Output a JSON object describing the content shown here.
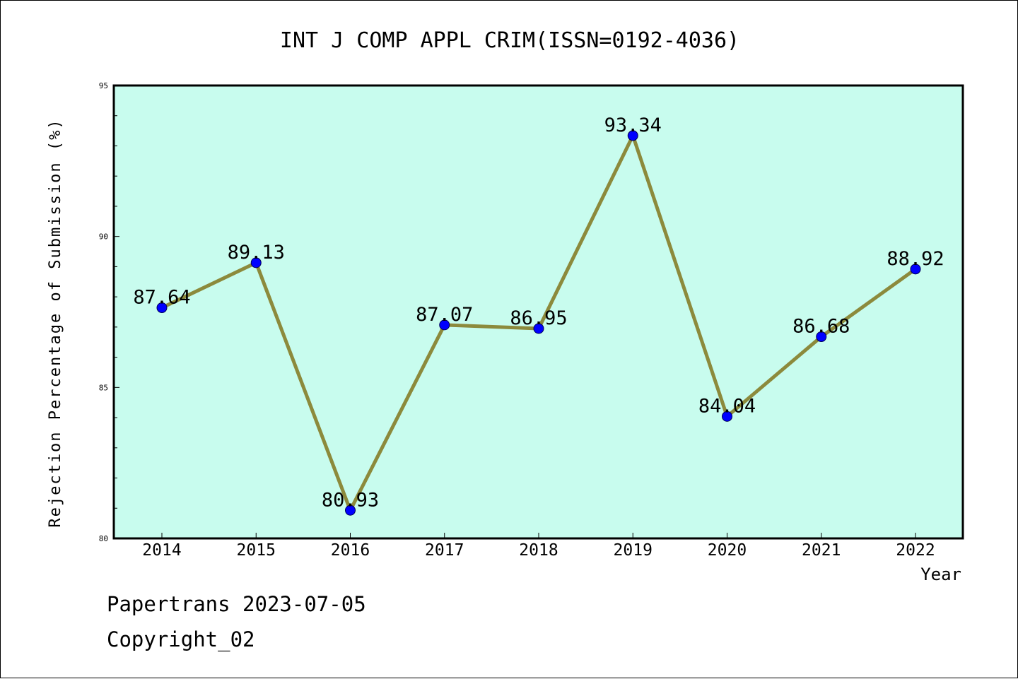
{
  "chart_data": {
    "type": "line",
    "title": "INT J COMP APPL CRIM(ISSN=0192-4036)",
    "xlabel": "Year",
    "ylabel": "Rejection Percentage of Submission (%)",
    "categories": [
      "2014",
      "2015",
      "2016",
      "2017",
      "2018",
      "2019",
      "2020",
      "2021",
      "2022"
    ],
    "values": [
      87.64,
      89.13,
      80.93,
      87.07,
      86.95,
      93.34,
      84.04,
      86.68,
      88.92
    ],
    "data_labels": [
      "87.64",
      "89.13",
      "80.93",
      "87.07",
      "86.95",
      "93.34",
      "84.04",
      "86.68",
      "88.92"
    ],
    "ylim": [
      80,
      95
    ],
    "yticks": [
      "80",
      "85",
      "90",
      "95"
    ],
    "grid": false,
    "legend": "none",
    "colors": {
      "plot_background": "#c8fcee",
      "line": "#8c8a3c",
      "marker": "#0000ff"
    }
  },
  "footer": {
    "line1": "Papertrans 2023-07-05",
    "line2": "Copyright_02"
  }
}
